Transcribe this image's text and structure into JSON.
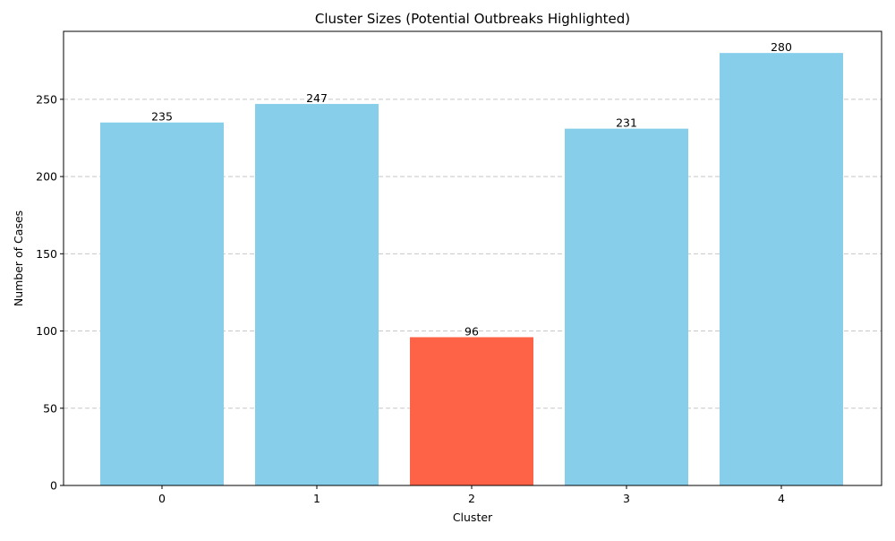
{
  "chart_data": {
    "type": "bar",
    "title": "Cluster Sizes (Potential Outbreaks Highlighted)",
    "xlabel": "Cluster",
    "ylabel": "Number of Cases",
    "categories": [
      "0",
      "1",
      "2",
      "3",
      "4"
    ],
    "values": [
      235,
      247,
      96,
      231,
      280
    ],
    "highlighted": [
      false,
      false,
      true,
      false,
      false
    ],
    "colors": {
      "normal": "#87CEEB",
      "highlight": "#FF6347",
      "grid": "#c8c8c8",
      "axis": "#000000"
    },
    "ylim": [
      0,
      294
    ],
    "yticks": [
      0,
      50,
      100,
      150,
      200,
      250
    ],
    "grid": "y-dashed",
    "legend": "none"
  }
}
